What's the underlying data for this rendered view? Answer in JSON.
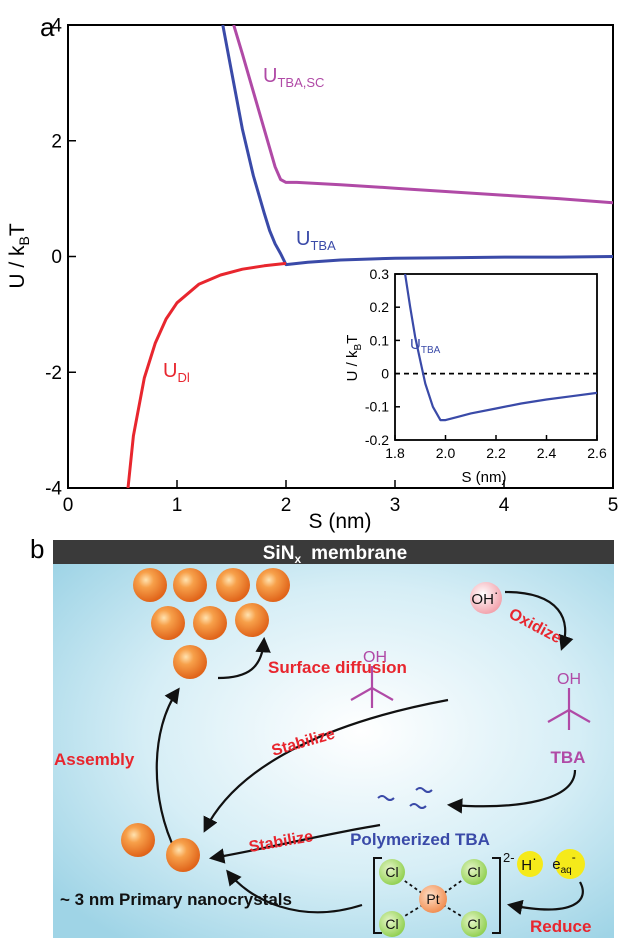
{
  "panel_a": {
    "label": "a",
    "xlabel_text": "S (nm)",
    "ylabel_main": "U / k",
    "ylabel_sub": "B",
    "ylabel_tail": "T",
    "curve_labels": {
      "sc_main": "U",
      "sc_sub": "TBA,SC",
      "tba_main": "U",
      "tba_sub": "TBA",
      "dl_main": "U",
      "dl_sub": "Dl"
    }
  },
  "inset": {
    "xlabel_text": "S (nm)",
    "ylabel_main": "U / k",
    "ylabel_sub": "B",
    "ylabel_tail": "T",
    "curve_label_main": "U",
    "curve_label_sub": "TBA"
  },
  "panel_b": {
    "label": "b",
    "membrane_main": "SiN",
    "membrane_sub": "x",
    "membrane_tail": "membrane",
    "oh_radical": "OH",
    "oh_dot": "·",
    "oxidize": "Oxidize",
    "oh_group_1": "OH",
    "oh_group_2": "OH",
    "tba": "TBA",
    "surface_diffusion": "Surface diffusion",
    "assembly": "Assembly",
    "stabilize_1": "Stabilize",
    "stabilize_2": "Stabilize",
    "polymerized_tba": "Polymerized TBA",
    "primary_nanocrystals": "~ 3 nm Primary nanocrystals",
    "h_radical": "H",
    "h_dot": "·",
    "e_aq": "e",
    "e_aq_sub": "aq",
    "e_aq_sup": "-",
    "pt": "Pt",
    "cl": "Cl",
    "charge": "2-",
    "reduce": "Reduce"
  },
  "chart_data": [
    {
      "type": "line",
      "xlabel": "S (nm)",
      "ylabel": "U / kBT",
      "xlim": [
        0,
        5
      ],
      "ylim": [
        -4,
        4
      ],
      "xticks": [
        "0",
        "1",
        "2",
        "3",
        "4",
        "5"
      ],
      "yticks": [
        "-4",
        "-2",
        "0",
        "2",
        "4"
      ],
      "grid": false,
      "series": [
        {
          "name": "UTBA,SC",
          "color": "#b04aa6",
          "x": [
            1.52,
            1.6,
            1.7,
            1.8,
            1.9,
            1.95,
            2.0,
            2.1,
            2.5,
            3.0,
            3.5,
            4.0,
            4.5,
            5.0
          ],
          "y": [
            4.0,
            3.5,
            2.85,
            2.2,
            1.55,
            1.33,
            1.28,
            1.28,
            1.24,
            1.18,
            1.12,
            1.06,
            1.0,
            0.93
          ]
        },
        {
          "name": "UTBA",
          "color": "#3a4aa8",
          "x": [
            1.42,
            1.5,
            1.6,
            1.7,
            1.8,
            1.85,
            1.9,
            1.95,
            2.0,
            2.2,
            2.5,
            3.0,
            3.5,
            4.0,
            4.5,
            5.0
          ],
          "y": [
            4.0,
            3.2,
            2.2,
            1.4,
            0.75,
            0.45,
            0.22,
            0.05,
            -0.14,
            -0.1,
            -0.06,
            -0.03,
            -0.02,
            -0.01,
            -0.01,
            0.0
          ]
        },
        {
          "name": "UDl",
          "color": "#e8262e",
          "x": [
            0.55,
            0.6,
            0.7,
            0.8,
            0.9,
            1.0,
            1.2,
            1.4,
            1.6,
            1.8,
            2.0
          ],
          "y": [
            -4.0,
            -3.1,
            -2.1,
            -1.5,
            -1.08,
            -0.8,
            -0.48,
            -0.32,
            -0.22,
            -0.16,
            -0.12
          ]
        }
      ]
    },
    {
      "type": "line",
      "xlabel": "S (nm)",
      "ylabel": "U / kBT",
      "xlim": [
        1.8,
        2.6
      ],
      "ylim": [
        -0.2,
        0.3
      ],
      "xticks": [
        "1.8",
        "2.0",
        "2.2",
        "2.4",
        "2.6"
      ],
      "yticks": [
        "-0.2",
        "-0.1",
        "0",
        "0.1",
        "0.2",
        "0.3"
      ],
      "grid": false,
      "reference_line_y": 0,
      "series": [
        {
          "name": "UTBA",
          "color": "#3a4aa8",
          "x": [
            1.84,
            1.86,
            1.88,
            1.9,
            1.92,
            1.95,
            1.98,
            2.0,
            2.05,
            2.1,
            2.2,
            2.3,
            2.4,
            2.5,
            2.6
          ],
          "y": [
            0.3,
            0.2,
            0.11,
            0.04,
            -0.03,
            -0.1,
            -0.14,
            -0.14,
            -0.13,
            -0.12,
            -0.105,
            -0.09,
            -0.078,
            -0.068,
            -0.058
          ]
        }
      ]
    }
  ]
}
